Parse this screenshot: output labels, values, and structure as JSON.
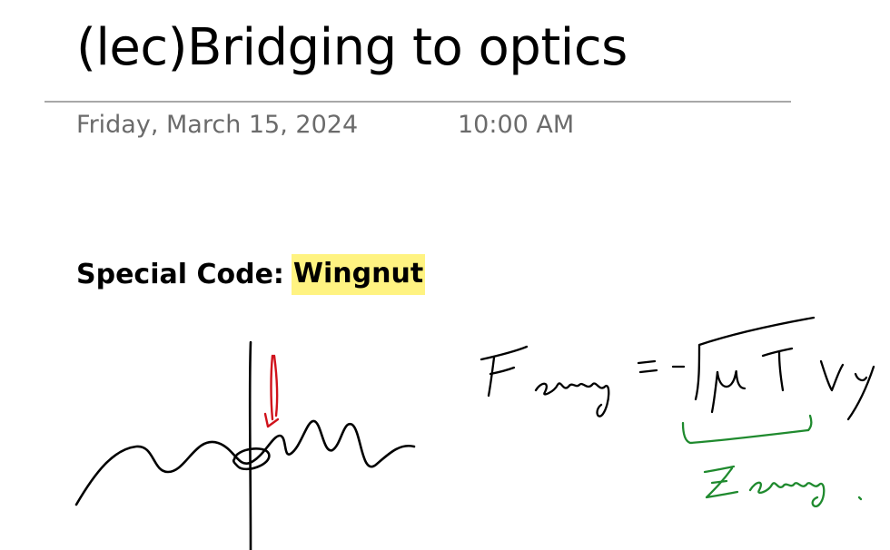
{
  "page": {
    "title": "(lec)Bridging to optics",
    "date": "Friday, March 15, 2024",
    "time": "10:00 AM"
  },
  "note": {
    "special_label": "Special Code:",
    "special_code": "Wingnut",
    "highlight_color": "#fff381"
  },
  "ink": {
    "colors": {
      "black": "#000000",
      "red": "#d0121b",
      "green": "#1f8a2e"
    }
  }
}
